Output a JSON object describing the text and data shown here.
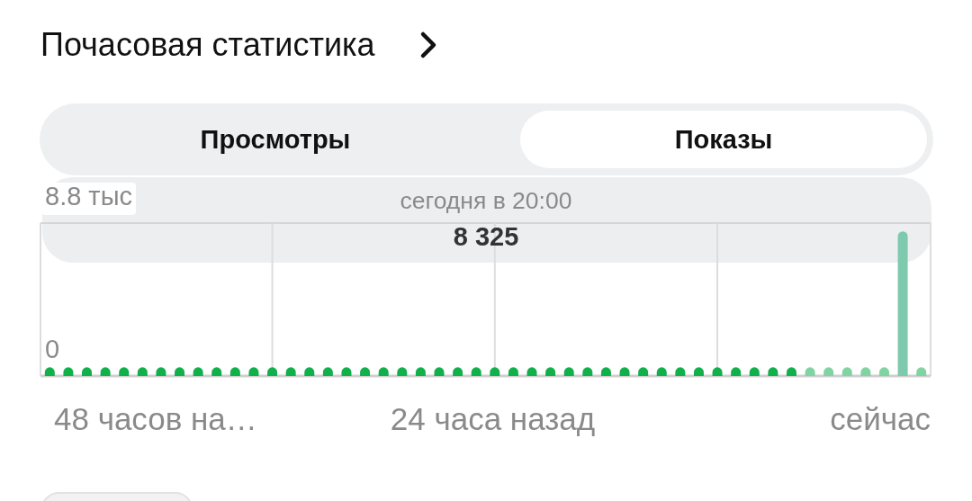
{
  "chart_data": {
    "type": "bar",
    "title": "Почасовая статистика",
    "categories": [
      null,
      null,
      null,
      null,
      null,
      null,
      null,
      null,
      null,
      null,
      null,
      null,
      null,
      null,
      null,
      null,
      null,
      null,
      null,
      null,
      null,
      null,
      null,
      null,
      null,
      null,
      null,
      null,
      null,
      null,
      null,
      null,
      null,
      null,
      null,
      null,
      null,
      null,
      null,
      null,
      null,
      null,
      null,
      null,
      null,
      null,
      null,
      null
    ],
    "values": [
      0.5,
      0.5,
      0.5,
      0.5,
      0.5,
      0.5,
      0.5,
      0.5,
      0.5,
      0.5,
      0.5,
      0.5,
      0.5,
      0.5,
      0.5,
      0.5,
      0.5,
      0.5,
      0.5,
      0.5,
      0.5,
      0.5,
      0.5,
      0.5,
      0.5,
      0.5,
      0.5,
      0.5,
      0.5,
      0.5,
      0.5,
      0.5,
      0.5,
      0.5,
      0.5,
      0.5,
      0.5,
      0.5,
      0.5,
      0.5,
      0.5,
      0.5,
      0.5,
      0.5,
      0.5,
      0.5,
      8.325,
      0.5
    ],
    "colors": [
      "#10b04a",
      "#10b04a",
      "#10b04a",
      "#10b04a",
      "#10b04a",
      "#10b04a",
      "#10b04a",
      "#10b04a",
      "#10b04a",
      "#10b04a",
      "#10b04a",
      "#10b04a",
      "#10b04a",
      "#10b04a",
      "#10b04a",
      "#10b04a",
      "#10b04a",
      "#10b04a",
      "#10b04a",
      "#10b04a",
      "#10b04a",
      "#10b04a",
      "#10b04a",
      "#10b04a",
      "#10b04a",
      "#10b04a",
      "#10b04a",
      "#10b04a",
      "#10b04a",
      "#10b04a",
      "#10b04a",
      "#10b04a",
      "#10b04a",
      "#10b04a",
      "#10b04a",
      "#10b04a",
      "#10b04a",
      "#10b04a",
      "#10b04a",
      "#10b04a",
      "#10b04a",
      "#80d4a2",
      "#80d4a2",
      "#80d4a2",
      "#80d4a2",
      "#80d4a2",
      "#7ecaae",
      "#80d4a2"
    ],
    "ylim": [
      0,
      8.8
    ],
    "yticks": [
      0,
      {
        "value": 8.8,
        "label": "8.8 тыс"
      }
    ],
    "grid": true,
    "annotations": [
      "Просмотры",
      "Показы",
      "сегодня в 20:00",
      "8 325",
      "48 часов на…",
      "24 часа назад",
      "сейчас"
    ]
  }
}
